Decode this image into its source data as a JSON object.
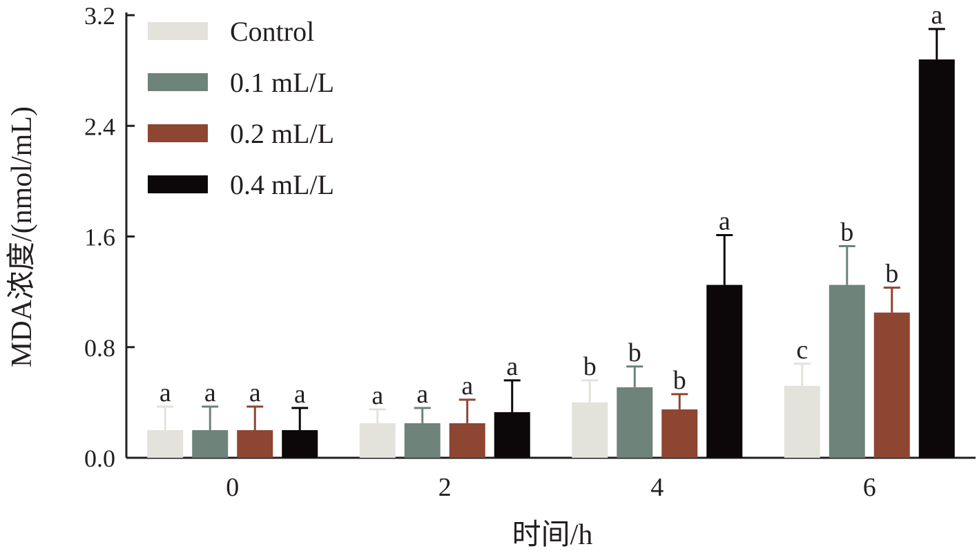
{
  "chart_data": {
    "type": "bar",
    "title": "",
    "xlabel": "时间/h",
    "ylabel": "MDA浓度/(nmol/mL)",
    "ylim": [
      0,
      3.2
    ],
    "yticks": [
      "0.0",
      "0.8",
      "1.6",
      "2.4",
      "3.2"
    ],
    "categories": [
      "0",
      "2",
      "4",
      "6"
    ],
    "legend_position": "top-left",
    "series": [
      {
        "name": "Control",
        "color": "#e3e2db",
        "values": [
          0.2,
          0.25,
          0.4,
          0.52
        ],
        "errors": [
          0.17,
          0.1,
          0.16,
          0.16
        ],
        "letters": [
          "a",
          "a",
          "b",
          "c"
        ]
      },
      {
        "name": "0.1 mL/L",
        "color": "#6e8379",
        "values": [
          0.2,
          0.25,
          0.51,
          1.25
        ],
        "errors": [
          0.17,
          0.11,
          0.15,
          0.28
        ],
        "letters": [
          "a",
          "a",
          "b",
          "b"
        ]
      },
      {
        "name": "0.2 mL/L",
        "color": "#8e4532",
        "values": [
          0.2,
          0.25,
          0.35,
          1.05
        ],
        "errors": [
          0.17,
          0.17,
          0.11,
          0.18
        ],
        "letters": [
          "a",
          "a",
          "b",
          "b"
        ]
      },
      {
        "name": "0.4 mL/L",
        "color": "#0c0708",
        "values": [
          0.2,
          0.33,
          1.25,
          2.88
        ],
        "errors": [
          0.16,
          0.23,
          0.36,
          0.22
        ],
        "letters": [
          "a",
          "a",
          "a",
          "a"
        ]
      }
    ]
  }
}
